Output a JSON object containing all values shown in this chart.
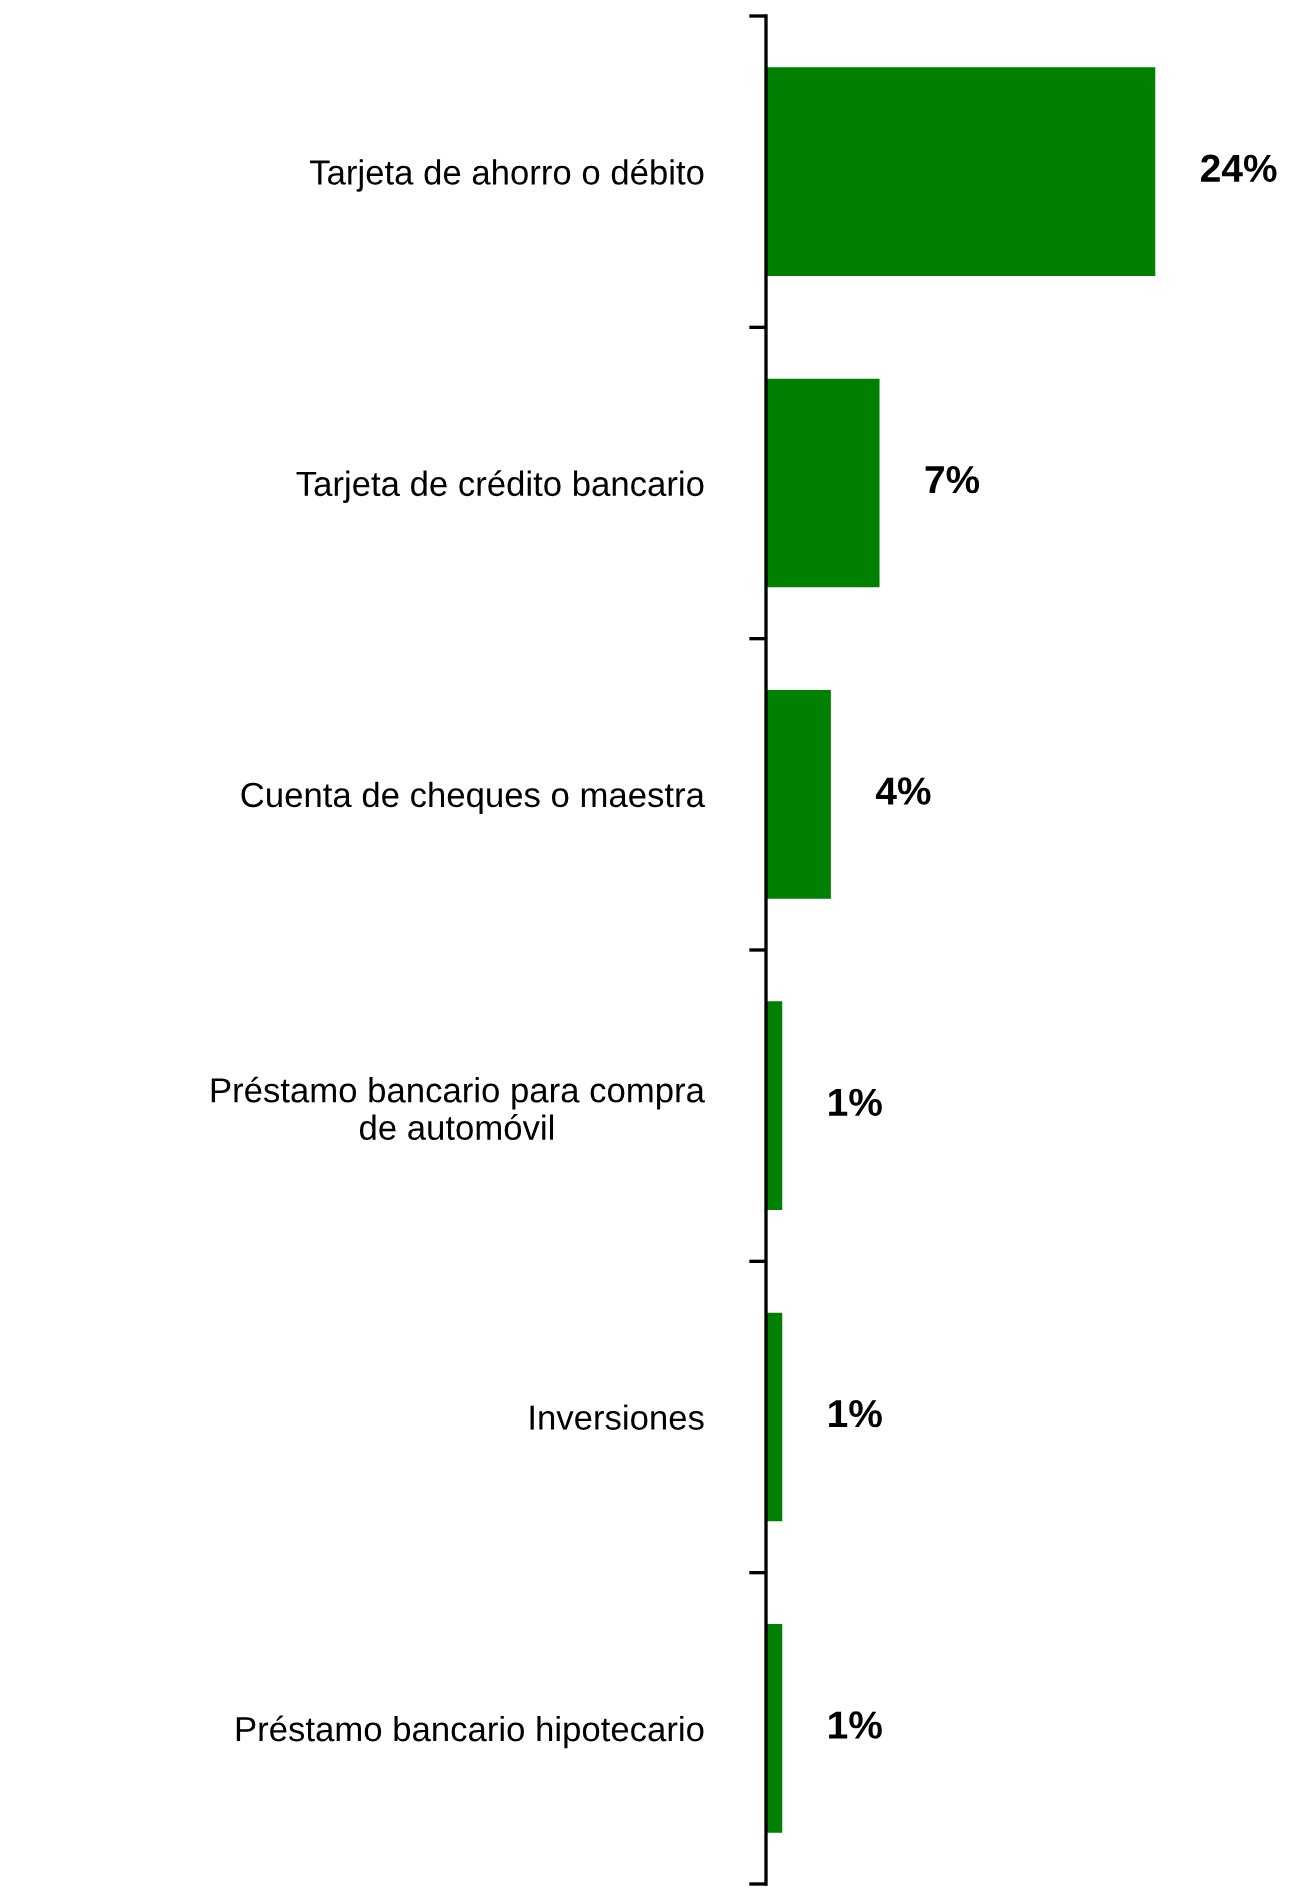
{
  "chart_data": {
    "type": "bar",
    "orientation": "horizontal",
    "categories": [
      "Tarjeta de ahorro o débito",
      "Tarjeta de crédito bancario",
      "Cuenta de cheques o maestra",
      "Préstamo bancario para compra\nde automóvil",
      "Inversiones",
      "Préstamo bancario hipotecario"
    ],
    "values": [
      24,
      7,
      4,
      1,
      1,
      1
    ],
    "value_labels": [
      "24%",
      "7%",
      "4%",
      "1%",
      "1%",
      "1%"
    ],
    "color": "#008000",
    "grid": false,
    "legend": false
  }
}
